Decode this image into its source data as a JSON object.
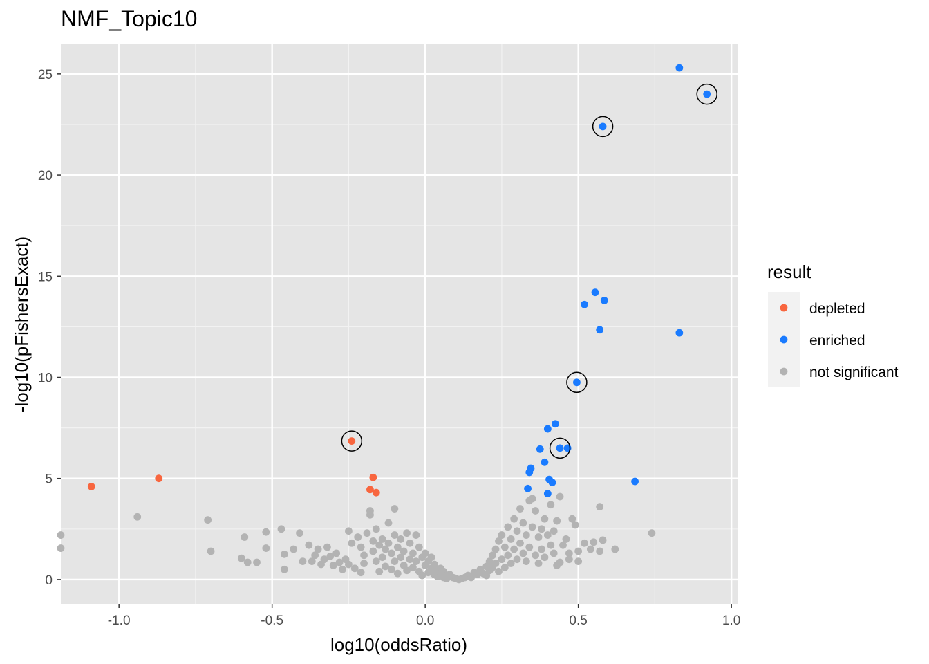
{
  "chart_data": {
    "type": "scatter",
    "title": "NMF_Topic10",
    "xlabel": "log10(oddsRatio)",
    "ylabel": "-log10(pFishersExact)",
    "xlim": [
      -1.19,
      1.02
    ],
    "ylim": [
      -1.2,
      26.5
    ],
    "x_ticks": [
      -1.0,
      -0.5,
      0.0,
      0.5,
      1.0
    ],
    "x_tick_labels": [
      "-1.0",
      "-0.5",
      "0.0",
      "0.5",
      "1.0"
    ],
    "y_ticks": [
      0,
      5,
      10,
      15,
      20,
      25
    ],
    "y_tick_labels": [
      "0",
      "5",
      "10",
      "15",
      "20",
      "25"
    ],
    "grid": true,
    "panel_background": "#e5e5e5",
    "legend": {
      "title": "result",
      "position": "right",
      "entries": [
        {
          "label": "depleted",
          "color": "#f8663f"
        },
        {
          "label": "enriched",
          "color": "#1a7bff"
        },
        {
          "label": "not significant",
          "color": "#b3b3b3"
        }
      ]
    },
    "series": [
      {
        "name": "depleted",
        "color": "#f8663f",
        "points": [
          {
            "x": -1.09,
            "y": 4.6
          },
          {
            "x": -0.87,
            "y": 5.0
          },
          {
            "x": -0.24,
            "y": 6.85,
            "circled": true
          },
          {
            "x": -0.17,
            "y": 5.05
          },
          {
            "x": -0.18,
            "y": 4.45
          },
          {
            "x": -0.16,
            "y": 4.3
          }
        ]
      },
      {
        "name": "enriched",
        "color": "#1a7bff",
        "points": [
          {
            "x": 0.83,
            "y": 25.3
          },
          {
            "x": 0.92,
            "y": 24.0,
            "circled": true
          },
          {
            "x": 0.58,
            "y": 22.4,
            "circled": true
          },
          {
            "x": 0.555,
            "y": 14.2
          },
          {
            "x": 0.52,
            "y": 13.6
          },
          {
            "x": 0.585,
            "y": 13.8
          },
          {
            "x": 0.57,
            "y": 12.35
          },
          {
            "x": 0.83,
            "y": 12.2
          },
          {
            "x": 0.495,
            "y": 9.75,
            "circled": true
          },
          {
            "x": 0.425,
            "y": 7.7
          },
          {
            "x": 0.4,
            "y": 7.45
          },
          {
            "x": 0.44,
            "y": 6.5,
            "circled": true
          },
          {
            "x": 0.465,
            "y": 6.5
          },
          {
            "x": 0.375,
            "y": 6.45
          },
          {
            "x": 0.39,
            "y": 5.8
          },
          {
            "x": 0.345,
            "y": 5.5
          },
          {
            "x": 0.34,
            "y": 5.3
          },
          {
            "x": 0.405,
            "y": 4.95
          },
          {
            "x": 0.415,
            "y": 4.8
          },
          {
            "x": 0.685,
            "y": 4.85
          },
          {
            "x": 0.335,
            "y": 4.5
          },
          {
            "x": 0.4,
            "y": 4.25
          }
        ]
      },
      {
        "name": "not significant",
        "color": "#b3b3b3",
        "points": [
          {
            "x": -1.19,
            "y": 2.2
          },
          {
            "x": -1.19,
            "y": 1.55
          },
          {
            "x": -0.94,
            "y": 3.1
          },
          {
            "x": -0.71,
            "y": 2.95
          },
          {
            "x": -0.7,
            "y": 1.4
          },
          {
            "x": -0.6,
            "y": 1.05
          },
          {
            "x": -0.59,
            "y": 2.1
          },
          {
            "x": -0.58,
            "y": 0.85
          },
          {
            "x": -0.55,
            "y": 0.85
          },
          {
            "x": -0.52,
            "y": 2.35
          },
          {
            "x": -0.52,
            "y": 1.55
          },
          {
            "x": -0.47,
            "y": 2.5
          },
          {
            "x": -0.46,
            "y": 1.25
          },
          {
            "x": -0.46,
            "y": 0.5
          },
          {
            "x": -0.43,
            "y": 1.5
          },
          {
            "x": -0.41,
            "y": 2.3
          },
          {
            "x": -0.4,
            "y": 0.9
          },
          {
            "x": -0.38,
            "y": 1.7
          },
          {
            "x": -0.37,
            "y": 0.9
          },
          {
            "x": -0.36,
            "y": 1.2
          },
          {
            "x": -0.35,
            "y": 1.5
          },
          {
            "x": -0.34,
            "y": 0.75
          },
          {
            "x": -0.33,
            "y": 1.0
          },
          {
            "x": -0.32,
            "y": 1.6
          },
          {
            "x": -0.31,
            "y": 1.15
          },
          {
            "x": -0.3,
            "y": 0.7
          },
          {
            "x": -0.29,
            "y": 1.3
          },
          {
            "x": -0.28,
            "y": 0.85
          },
          {
            "x": -0.27,
            "y": 0.5
          },
          {
            "x": -0.26,
            "y": 1.0
          },
          {
            "x": -0.25,
            "y": 0.75
          },
          {
            "x": -0.25,
            "y": 2.4
          },
          {
            "x": -0.24,
            "y": 1.8
          },
          {
            "x": -0.23,
            "y": 0.55
          },
          {
            "x": -0.22,
            "y": 2.1
          },
          {
            "x": -0.21,
            "y": 1.6
          },
          {
            "x": -0.21,
            "y": 0.35
          },
          {
            "x": -0.2,
            "y": 1.2
          },
          {
            "x": -0.2,
            "y": 0.8
          },
          {
            "x": -0.19,
            "y": 2.3
          },
          {
            "x": -0.18,
            "y": 3.4
          },
          {
            "x": -0.18,
            "y": 3.2
          },
          {
            "x": -0.17,
            "y": 1.9
          },
          {
            "x": -0.17,
            "y": 1.4
          },
          {
            "x": -0.16,
            "y": 0.9
          },
          {
            "x": -0.16,
            "y": 2.5
          },
          {
            "x": -0.15,
            "y": 1.7
          },
          {
            "x": -0.15,
            "y": 0.4
          },
          {
            "x": -0.14,
            "y": 2.0
          },
          {
            "x": -0.14,
            "y": 1.1
          },
          {
            "x": -0.13,
            "y": 1.5
          },
          {
            "x": -0.13,
            "y": 0.65
          },
          {
            "x": -0.12,
            "y": 2.8
          },
          {
            "x": -0.12,
            "y": 1.8
          },
          {
            "x": -0.11,
            "y": 1.3
          },
          {
            "x": -0.11,
            "y": 0.5
          },
          {
            "x": -0.1,
            "y": 3.5
          },
          {
            "x": -0.1,
            "y": 2.2
          },
          {
            "x": -0.1,
            "y": 0.9
          },
          {
            "x": -0.09,
            "y": 1.6
          },
          {
            "x": -0.09,
            "y": 0.3
          },
          {
            "x": -0.08,
            "y": 1.1
          },
          {
            "x": -0.08,
            "y": 2.0
          },
          {
            "x": -0.07,
            "y": 0.7
          },
          {
            "x": -0.07,
            "y": 1.4
          },
          {
            "x": -0.06,
            "y": 2.3
          },
          {
            "x": -0.06,
            "y": 0.45
          },
          {
            "x": -0.05,
            "y": 1.0
          },
          {
            "x": -0.05,
            "y": 1.8
          },
          {
            "x": -0.04,
            "y": 0.6
          },
          {
            "x": -0.04,
            "y": 1.3
          },
          {
            "x": -0.03,
            "y": 2.2
          },
          {
            "x": -0.03,
            "y": 0.9
          },
          {
            "x": -0.02,
            "y": 0.4
          },
          {
            "x": -0.02,
            "y": 1.6
          },
          {
            "x": -0.01,
            "y": 1.1
          },
          {
            "x": -0.01,
            "y": 0.2
          },
          {
            "x": 0.0,
            "y": 0.7
          },
          {
            "x": 0.0,
            "y": 1.3
          },
          {
            "x": 0.01,
            "y": 0.35
          },
          {
            "x": 0.01,
            "y": 0.9
          },
          {
            "x": 0.02,
            "y": 0.55
          },
          {
            "x": 0.02,
            "y": 1.1
          },
          {
            "x": 0.03,
            "y": 0.25
          },
          {
            "x": 0.03,
            "y": 0.75
          },
          {
            "x": 0.04,
            "y": 0.45
          },
          {
            "x": 0.04,
            "y": 0.15
          },
          {
            "x": 0.05,
            "y": 0.55
          },
          {
            "x": 0.05,
            "y": 0.3
          },
          {
            "x": 0.06,
            "y": 0.1
          },
          {
            "x": 0.06,
            "y": 0.4
          },
          {
            "x": 0.07,
            "y": 0.2
          },
          {
            "x": 0.07,
            "y": 0.05
          },
          {
            "x": 0.08,
            "y": 0.25
          },
          {
            "x": 0.09,
            "y": 0.1
          },
          {
            "x": 0.1,
            "y": 0.05
          },
          {
            "x": 0.11,
            "y": 0.0
          },
          {
            "x": 0.12,
            "y": 0.05
          },
          {
            "x": 0.13,
            "y": 0.1
          },
          {
            "x": 0.14,
            "y": 0.2
          },
          {
            "x": 0.15,
            "y": 0.1
          },
          {
            "x": 0.16,
            "y": 0.35
          },
          {
            "x": 0.17,
            "y": 0.25
          },
          {
            "x": 0.18,
            "y": 0.5
          },
          {
            "x": 0.19,
            "y": 0.3
          },
          {
            "x": 0.2,
            "y": 0.65
          },
          {
            "x": 0.2,
            "y": 0.2
          },
          {
            "x": 0.21,
            "y": 0.9
          },
          {
            "x": 0.21,
            "y": 0.45
          },
          {
            "x": 0.22,
            "y": 1.2
          },
          {
            "x": 0.22,
            "y": 0.6
          },
          {
            "x": 0.23,
            "y": 1.5
          },
          {
            "x": 0.23,
            "y": 0.8
          },
          {
            "x": 0.24,
            "y": 0.4
          },
          {
            "x": 0.24,
            "y": 1.9
          },
          {
            "x": 0.25,
            "y": 1.0
          },
          {
            "x": 0.25,
            "y": 2.2
          },
          {
            "x": 0.26,
            "y": 0.6
          },
          {
            "x": 0.26,
            "y": 1.6
          },
          {
            "x": 0.27,
            "y": 2.6
          },
          {
            "x": 0.27,
            "y": 1.2
          },
          {
            "x": 0.28,
            "y": 0.8
          },
          {
            "x": 0.28,
            "y": 2.0
          },
          {
            "x": 0.29,
            "y": 1.5
          },
          {
            "x": 0.29,
            "y": 3.0
          },
          {
            "x": 0.3,
            "y": 2.4
          },
          {
            "x": 0.3,
            "y": 1.0
          },
          {
            "x": 0.31,
            "y": 1.8
          },
          {
            "x": 0.31,
            "y": 3.5
          },
          {
            "x": 0.32,
            "y": 2.8
          },
          {
            "x": 0.32,
            "y": 1.3
          },
          {
            "x": 0.33,
            "y": 2.2
          },
          {
            "x": 0.33,
            "y": 0.9
          },
          {
            "x": 0.34,
            "y": 3.9
          },
          {
            "x": 0.34,
            "y": 1.6
          },
          {
            "x": 0.35,
            "y": 2.6
          },
          {
            "x": 0.35,
            "y": 4.0
          },
          {
            "x": 0.36,
            "y": 1.2
          },
          {
            "x": 0.36,
            "y": 3.4
          },
          {
            "x": 0.37,
            "y": 2.1
          },
          {
            "x": 0.37,
            "y": 0.8
          },
          {
            "x": 0.38,
            "y": 2.5
          },
          {
            "x": 0.38,
            "y": 1.5
          },
          {
            "x": 0.39,
            "y": 3.0
          },
          {
            "x": 0.39,
            "y": 1.1
          },
          {
            "x": 0.4,
            "y": 2.2
          },
          {
            "x": 0.41,
            "y": 3.7
          },
          {
            "x": 0.41,
            "y": 1.7
          },
          {
            "x": 0.42,
            "y": 2.4
          },
          {
            "x": 0.42,
            "y": 1.3
          },
          {
            "x": 0.43,
            "y": 2.9
          },
          {
            "x": 0.43,
            "y": 0.7
          },
          {
            "x": 0.44,
            "y": 4.1
          },
          {
            "x": 0.44,
            "y": 0.85
          },
          {
            "x": 0.45,
            "y": 1.7
          },
          {
            "x": 0.46,
            "y": 2.0
          },
          {
            "x": 0.47,
            "y": 1.3
          },
          {
            "x": 0.47,
            "y": 1.0
          },
          {
            "x": 0.48,
            "y": 3.0
          },
          {
            "x": 0.49,
            "y": 2.7
          },
          {
            "x": 0.5,
            "y": 1.4
          },
          {
            "x": 0.5,
            "y": 0.9
          },
          {
            "x": 0.52,
            "y": 1.8
          },
          {
            "x": 0.54,
            "y": 1.5
          },
          {
            "x": 0.55,
            "y": 1.85
          },
          {
            "x": 0.57,
            "y": 3.6
          },
          {
            "x": 0.57,
            "y": 1.4
          },
          {
            "x": 0.58,
            "y": 1.95
          },
          {
            "x": 0.62,
            "y": 1.5
          },
          {
            "x": 0.74,
            "y": 2.3
          }
        ]
      }
    ]
  }
}
